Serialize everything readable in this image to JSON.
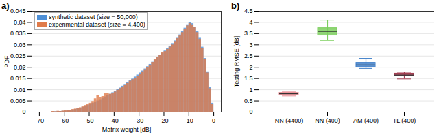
{
  "chart_data": [
    {
      "type": "histogram",
      "title": "a)",
      "x_label": "Matrix weight [dB]",
      "y_label": "PDF",
      "bins": [
        -70,
        -69,
        -68,
        -67,
        -66,
        -65,
        -64,
        -63,
        -62,
        -61,
        -60,
        -59,
        -58,
        -57,
        -56,
        -55,
        -54,
        -53,
        -52,
        -51,
        -50,
        -49,
        -48,
        -47,
        -46,
        -45,
        -44,
        -43,
        -42,
        -41,
        -40,
        -39,
        -38,
        -37,
        -36,
        -35,
        -34,
        -33,
        -32,
        -31,
        -30,
        -29,
        -28,
        -27,
        -26,
        -25,
        -24,
        -23,
        -22,
        -21,
        -20,
        -19,
        -18,
        -17,
        -16,
        -15,
        -14,
        -13,
        -12,
        -11,
        -10,
        -9,
        -8,
        -7,
        -6,
        -5,
        -4,
        -3,
        -2,
        -1,
        0
      ],
      "series": [
        {
          "name": "synthetic dataset (size = 50,000)",
          "color": "#4d8fd6",
          "values": [
            0,
            0,
            0,
            0,
            0,
            0.0002,
            0.0002,
            0.0003,
            0.0003,
            0.0004,
            0.0005,
            0.0006,
            0.0008,
            0.001,
            0.0012,
            0.0015,
            0.0018,
            0.0022,
            0.0026,
            0.003,
            0.0035,
            0.004,
            0.0045,
            0.005,
            0.0056,
            0.0062,
            0.0068,
            0.0074,
            0.008,
            0.0087,
            0.0094,
            0.0101,
            0.0108,
            0.0116,
            0.0124,
            0.0132,
            0.014,
            0.0148,
            0.0157,
            0.0166,
            0.0175,
            0.0184,
            0.0193,
            0.0203,
            0.0213,
            0.0223,
            0.0233,
            0.0243,
            0.0253,
            0.0263,
            0.0273,
            0.0284,
            0.0295,
            0.0306,
            0.0318,
            0.033,
            0.0345,
            0.036,
            0.0375,
            0.039,
            0.04,
            0.0395,
            0.038,
            0.036,
            0.033,
            0.029,
            0.024,
            0.018,
            0.011,
            0.004
          ]
        },
        {
          "name": "experimental dataset (size = 4,400)",
          "color": "#e07b4a",
          "values": [
            0,
            0,
            0,
            0,
            0,
            0.0003,
            0.0002,
            0.0004,
            0.0003,
            0.0005,
            0.0006,
            0.0008,
            0.0007,
            0.0012,
            0.0014,
            0.0016,
            0.002,
            0.0024,
            0.003,
            0.0034,
            0.004,
            0.0048,
            0.006,
            0.0075,
            0.0065,
            0.007,
            0.0082,
            0.0085,
            0.008,
            0.0085,
            0.009,
            0.0098,
            0.0105,
            0.0112,
            0.012,
            0.0128,
            0.0138,
            0.0145,
            0.015,
            0.016,
            0.017,
            0.018,
            0.019,
            0.02,
            0.021,
            0.0222,
            0.0235,
            0.0245,
            0.0255,
            0.0265,
            0.027,
            0.028,
            0.029,
            0.03,
            0.0315,
            0.0328,
            0.034,
            0.0355,
            0.037,
            0.0385,
            0.0395,
            0.039,
            0.0378,
            0.0355,
            0.0325,
            0.0285,
            0.0235,
            0.0175,
            0.0105,
            0.0035
          ]
        }
      ],
      "xlim": [
        -73,
        3
      ],
      "xticks": [
        -70,
        -60,
        -50,
        -40,
        -30,
        -20,
        -10,
        0
      ],
      "ylim": [
        0,
        0.045
      ],
      "yticks": [
        0,
        0.005,
        0.01,
        0.015,
        0.02,
        0.025,
        0.03,
        0.035,
        0.04,
        0.045
      ],
      "grid": true,
      "legend": "upper left"
    },
    {
      "type": "box",
      "title": "b)",
      "y_label": "Testing RMSE [dB]",
      "categories": [
        "NN (4400)",
        "NN (400)",
        "AM (400)",
        "TL (400)"
      ],
      "min": [
        0.72,
        3.2,
        1.95,
        1.48
      ],
      "q1": [
        0.78,
        3.42,
        2.0,
        1.6
      ],
      "median": [
        0.82,
        3.6,
        2.1,
        1.65
      ],
      "q3": [
        0.86,
        3.75,
        2.2,
        1.72
      ],
      "max": [
        0.9,
        4.1,
        2.4,
        1.78
      ],
      "colors": [
        "#e8888f",
        "#7ccf5e",
        "#3f7fc9",
        "#a23a4f"
      ],
      "ylim": [
        0,
        4.5
      ],
      "yticks": [
        0,
        0.5,
        1,
        1.5,
        2,
        2.5,
        3,
        3.5,
        4,
        4.5
      ],
      "grid": true
    }
  ]
}
